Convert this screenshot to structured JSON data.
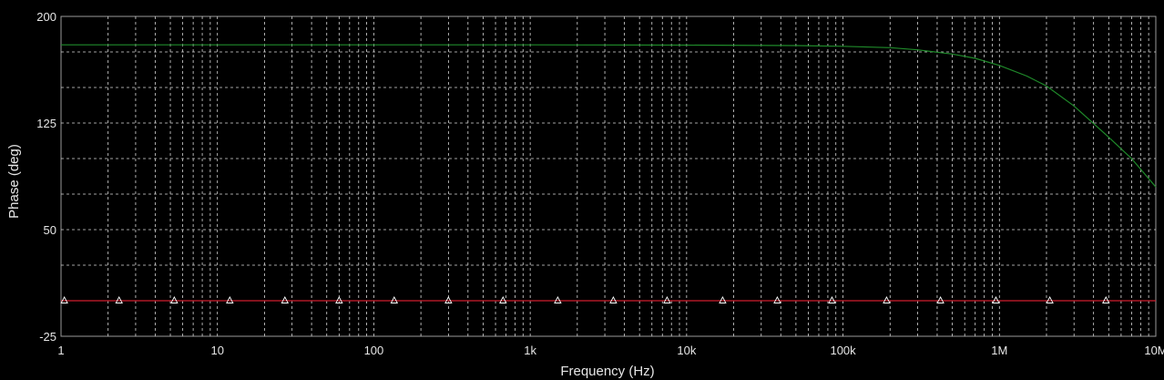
{
  "chart_data": {
    "type": "line",
    "title": "",
    "xlabel": "Frequency (Hz)",
    "ylabel": "Phase (deg)",
    "x_scale": "log",
    "xlim": [
      1,
      10000000
    ],
    "ylim": [
      -25,
      200
    ],
    "grid": true,
    "background_color": "#000000",
    "grid_color": "#d8d8d8",
    "x_tick_labels": [
      "1",
      "10",
      "100",
      "1k",
      "10k",
      "100k",
      "1M",
      "10M"
    ],
    "x_tick_values": [
      1,
      10,
      100,
      1000,
      10000,
      100000,
      1000000,
      10000000
    ],
    "y_tick_labels": [
      "200",
      "125",
      "50",
      "-25"
    ],
    "y_tick_values": [
      200,
      125,
      50,
      -25
    ],
    "series": [
      {
        "color": "#1f8a2a",
        "x": [
          1,
          10,
          100,
          1000,
          10000,
          50000,
          100000,
          200000,
          300000,
          500000,
          700000,
          1000000,
          1500000,
          2000000,
          3000000,
          5000000,
          7000000,
          10000000
        ],
        "y": [
          180,
          180,
          180,
          180,
          179.8,
          179.5,
          179,
          178,
          176.5,
          173.5,
          170.5,
          165.5,
          158,
          151,
          137,
          115,
          100,
          80
        ]
      },
      {
        "color": "#d01c2c",
        "marker": "triangle",
        "marker_color": "#ffffff",
        "x": [
          1,
          10000000
        ],
        "y": [
          0,
          0
        ],
        "marker_x": [
          1.05,
          2.35,
          5.3,
          12,
          27,
          60,
          135,
          300,
          670,
          1500,
          3400,
          7500,
          17000,
          38000,
          85000,
          190000,
          420000,
          950000,
          2100000,
          4800000
        ]
      }
    ]
  }
}
